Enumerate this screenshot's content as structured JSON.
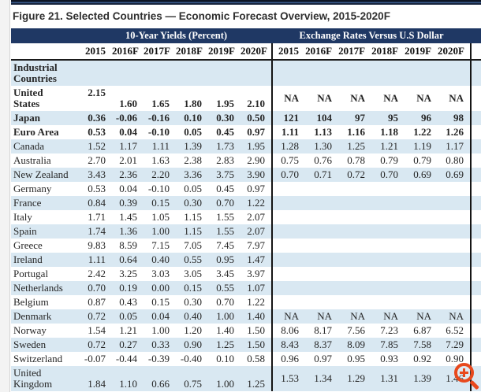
{
  "page": {
    "title": "Figure 21. Selected Countries — Economic Forecast Overview, 2015-2020F"
  },
  "colors": {
    "header_navy": "#1f3864",
    "row_stripe_blue": "#d9e8f2",
    "divider_black": "#151515",
    "zoom_cursor_orange": "#e8491d"
  },
  "table": {
    "group_headers": {
      "yields": "10-Year Yields (Percent)",
      "fx": "Exchange Rates Versus U.S Dollar"
    },
    "years": [
      "2015",
      "2016F",
      "2017F",
      "2018F",
      "2019F",
      "2020F"
    ],
    "rows": [
      {
        "label": "Industrial\nCountries",
        "bold": true,
        "yields": [
          "",
          "",
          "",
          "",
          "",
          ""
        ],
        "fx": [
          "",
          "",
          "",
          "",
          "",
          ""
        ]
      },
      {
        "label": "United\nStates",
        "bold": true,
        "align": "us",
        "yields": [
          "2.15",
          "1.60",
          "1.65",
          "1.80",
          "1.95",
          "2.10"
        ],
        "fx": [
          "NA",
          "NA",
          "NA",
          "NA",
          "NA",
          "NA"
        ]
      },
      {
        "label": "Japan",
        "bold": true,
        "yields": [
          "0.36",
          "-0.06",
          "-0.16",
          "0.10",
          "0.30",
          "0.50"
        ],
        "fx": [
          "121",
          "104",
          "97",
          "95",
          "96",
          "98"
        ]
      },
      {
        "label": "Euro Area",
        "bold": true,
        "yields": [
          "0.53",
          "0.04",
          "-0.10",
          "0.05",
          "0.45",
          "0.97"
        ],
        "fx": [
          "1.11",
          "1.13",
          "1.16",
          "1.18",
          "1.22",
          "1.26"
        ]
      },
      {
        "label": "Canada",
        "bold": false,
        "yields": [
          "1.52",
          "1.17",
          "1.11",
          "1.39",
          "1.73",
          "1.95"
        ],
        "fx": [
          "1.28",
          "1.30",
          "1.25",
          "1.21",
          "1.19",
          "1.17"
        ]
      },
      {
        "label": "Australia",
        "bold": false,
        "yields": [
          "2.70",
          "2.01",
          "1.63",
          "2.38",
          "2.83",
          "2.90"
        ],
        "fx": [
          "0.75",
          "0.76",
          "0.78",
          "0.79",
          "0.79",
          "0.80"
        ]
      },
      {
        "label": "New Zealand",
        "bold": false,
        "yields": [
          "3.43",
          "2.36",
          "2.20",
          "3.36",
          "3.75",
          "3.90"
        ],
        "fx": [
          "0.70",
          "0.71",
          "0.72",
          "0.70",
          "0.69",
          "0.69"
        ]
      },
      {
        "label": "Germany",
        "bold": false,
        "yields": [
          "0.53",
          "0.04",
          "-0.10",
          "0.05",
          "0.45",
          "0.97"
        ],
        "fx": [
          "",
          "",
          "",
          "",
          "",
          ""
        ]
      },
      {
        "label": "France",
        "bold": false,
        "yields": [
          "0.84",
          "0.39",
          "0.15",
          "0.30",
          "0.70",
          "1.22"
        ],
        "fx": [
          "",
          "",
          "",
          "",
          "",
          ""
        ]
      },
      {
        "label": "Italy",
        "bold": false,
        "yields": [
          "1.71",
          "1.45",
          "1.05",
          "1.15",
          "1.55",
          "2.07"
        ],
        "fx": [
          "",
          "",
          "",
          "",
          "",
          ""
        ]
      },
      {
        "label": "Spain",
        "bold": false,
        "yields": [
          "1.74",
          "1.36",
          "1.00",
          "1.15",
          "1.55",
          "2.07"
        ],
        "fx": [
          "",
          "",
          "",
          "",
          "",
          ""
        ]
      },
      {
        "label": "Greece",
        "bold": false,
        "yields": [
          "9.83",
          "8.59",
          "7.15",
          "7.05",
          "7.45",
          "7.97"
        ],
        "fx": [
          "",
          "",
          "",
          "",
          "",
          ""
        ]
      },
      {
        "label": "Ireland",
        "bold": false,
        "yields": [
          "1.11",
          "0.64",
          "0.40",
          "0.55",
          "0.95",
          "1.47"
        ],
        "fx": [
          "",
          "",
          "",
          "",
          "",
          ""
        ]
      },
      {
        "label": "Portugal",
        "bold": false,
        "yields": [
          "2.42",
          "3.25",
          "3.03",
          "3.05",
          "3.45",
          "3.97"
        ],
        "fx": [
          "",
          "",
          "",
          "",
          "",
          ""
        ]
      },
      {
        "label": "Netherlands",
        "bold": false,
        "yields": [
          "0.70",
          "0.19",
          "0.00",
          "0.15",
          "0.55",
          "1.07"
        ],
        "fx": [
          "",
          "",
          "",
          "",
          "",
          ""
        ]
      },
      {
        "label": "Belgium",
        "bold": false,
        "yields": [
          "0.87",
          "0.43",
          "0.15",
          "0.30",
          "0.70",
          "1.22"
        ],
        "fx": [
          "",
          "",
          "",
          "",
          "",
          ""
        ]
      },
      {
        "label": "Denmark",
        "bold": false,
        "yields": [
          "0.72",
          "0.05",
          "0.04",
          "0.40",
          "1.00",
          "1.40"
        ],
        "fx": [
          "NA",
          "NA",
          "NA",
          "NA",
          "NA",
          "NA"
        ]
      },
      {
        "label": "Norway",
        "bold": false,
        "yields": [
          "1.54",
          "1.21",
          "1.00",
          "1.20",
          "1.40",
          "1.50"
        ],
        "fx": [
          "8.06",
          "8.17",
          "7.56",
          "7.23",
          "6.87",
          "6.52"
        ]
      },
      {
        "label": "Sweden",
        "bold": false,
        "yields": [
          "0.72",
          "0.27",
          "0.33",
          "0.90",
          "1.25",
          "1.50"
        ],
        "fx": [
          "8.43",
          "8.37",
          "8.09",
          "7.85",
          "7.58",
          "7.29"
        ]
      },
      {
        "label": "Switzerland",
        "bold": false,
        "yields": [
          "-0.07",
          "-0.44",
          "-0.39",
          "-0.40",
          "0.10",
          "0.58"
        ],
        "fx": [
          "0.96",
          "0.97",
          "0.95",
          "0.93",
          "0.92",
          "0.90"
        ]
      },
      {
        "label": "United\nKingdom",
        "bold": false,
        "align": "uk",
        "yields": [
          "1.84",
          "1.10",
          "0.66",
          "0.75",
          "1.00",
          "1.25"
        ],
        "fx": [
          "1.53",
          "1.34",
          "1.29",
          "1.31",
          "1.39",
          "1.46"
        ]
      }
    ]
  },
  "cursor": {
    "name": "zoom-in-magnifier",
    "color": "#e8491d"
  }
}
